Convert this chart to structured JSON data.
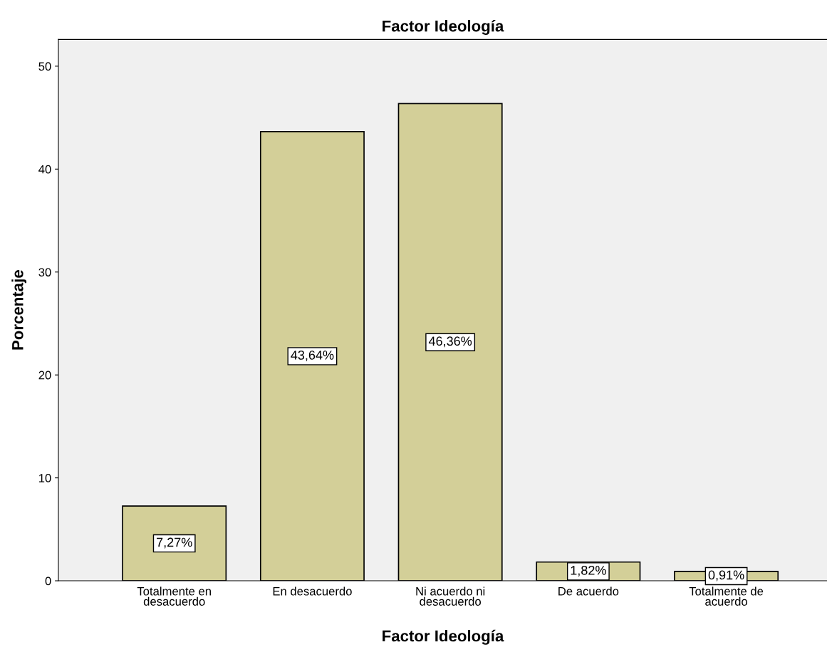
{
  "chart_data": {
    "type": "bar",
    "title": "Factor Ideología",
    "xlabel": "Factor Ideología",
    "ylabel": "Porcentaje",
    "categories": [
      "Totalmente en\ndesacuerdo",
      "En desacuerdo",
      "Ni acuerdo ni\ndesacuerdo",
      "De acuerdo",
      "Totalmente de\nacuerdo"
    ],
    "values": [
      7.27,
      43.64,
      46.36,
      1.82,
      0.91
    ],
    "value_labels": [
      "7,27%",
      "43,64%",
      "46,36%",
      "1,82%",
      "0,91%"
    ],
    "color": "#d3cf98",
    "ylim": [
      0,
      52.6
    ],
    "yticks": [
      0,
      10,
      20,
      30,
      40,
      50
    ],
    "grid": false,
    "legend": false
  }
}
